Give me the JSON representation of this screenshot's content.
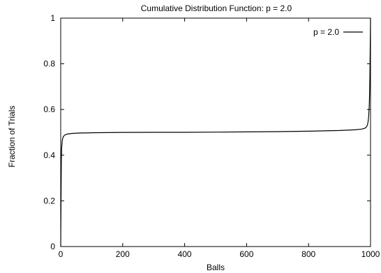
{
  "chart_data": {
    "type": "line",
    "title": "Cumulative Distribution Function: p = 2.0",
    "xlabel": "Balls",
    "ylabel": "Fraction of Trials",
    "xlim": [
      0,
      1000
    ],
    "ylim": [
      0,
      1
    ],
    "x_ticks": [
      0,
      200,
      400,
      600,
      800,
      1000
    ],
    "y_ticks": [
      0,
      0.2,
      0.4,
      0.6,
      0.8,
      1
    ],
    "x_tick_labels": [
      "0",
      "200",
      "400",
      "600",
      "800",
      "1000"
    ],
    "y_tick_labels": [
      "0",
      "0.2",
      "0.4",
      "0.6",
      "0.8",
      "1"
    ],
    "grid": false,
    "legend_position": "top-right",
    "series": [
      {
        "name": "p = 2.0",
        "color": "#000000",
        "x": [
          0,
          1,
          2,
          3,
          5,
          8,
          12,
          20,
          35,
          60,
          100,
          200,
          300,
          400,
          500,
          600,
          700,
          800,
          900,
          950,
          970,
          980,
          985,
          988,
          990,
          992,
          994,
          996,
          997,
          998,
          999,
          1000
        ],
        "y": [
          0.0,
          0.2,
          0.38,
          0.43,
          0.465,
          0.48,
          0.487,
          0.492,
          0.495,
          0.497,
          0.498,
          0.4995,
          0.5,
          0.5,
          0.501,
          0.502,
          0.503,
          0.505,
          0.508,
          0.511,
          0.514,
          0.517,
          0.521,
          0.526,
          0.533,
          0.545,
          0.57,
          0.62,
          0.67,
          0.75,
          0.88,
          1.0
        ]
      }
    ]
  }
}
